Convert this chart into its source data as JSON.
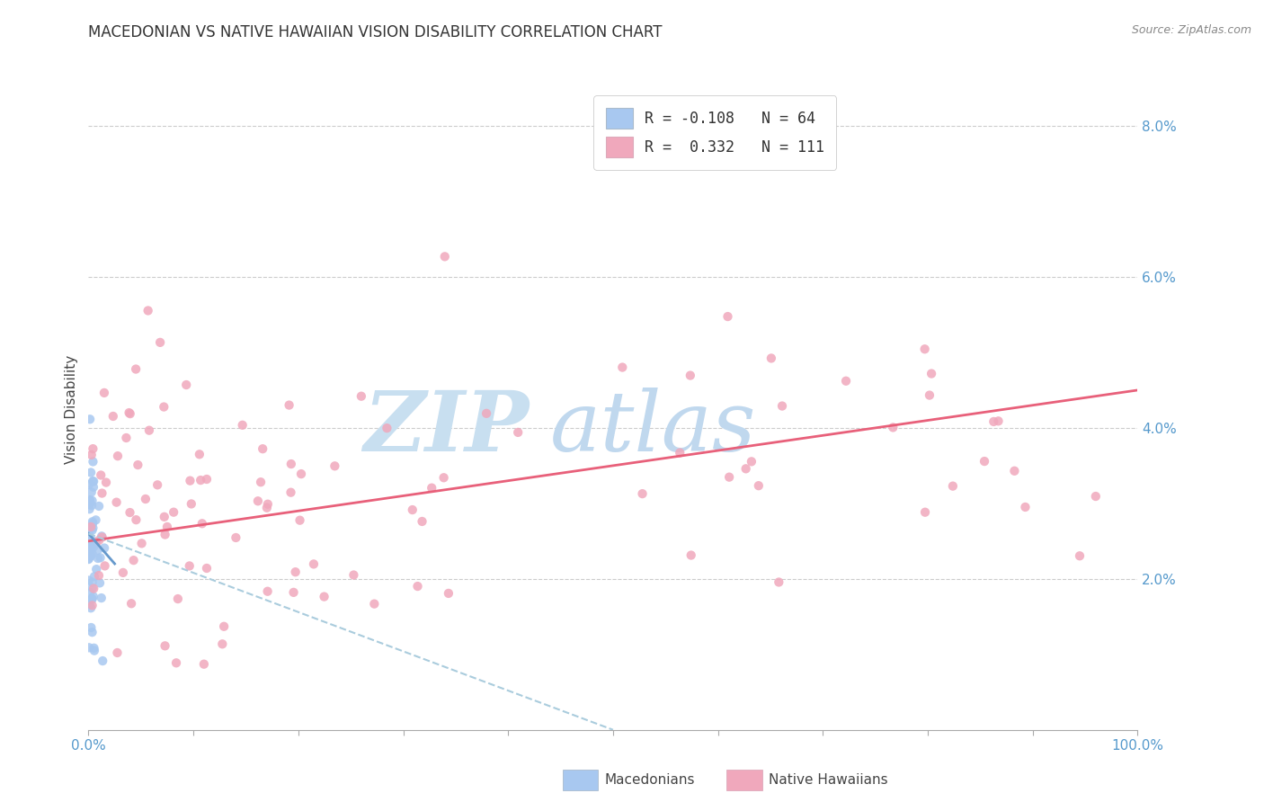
{
  "title": "MACEDONIAN VS NATIVE HAWAIIAN VISION DISABILITY CORRELATION CHART",
  "source": "Source: ZipAtlas.com",
  "ylabel_label": "Vision Disability",
  "macedonian_color": "#a8c8f0",
  "hawaiian_color": "#f0a8bc",
  "trendline_mac_solid_color": "#6699cc",
  "trendline_mac_dash_color": "#aaccdd",
  "trendline_haw_color": "#e8607a",
  "background_color": "#ffffff",
  "grid_color": "#cccccc",
  "tick_color": "#5599cc",
  "watermark_zip_color": "#c8dff0",
  "watermark_atlas_color": "#c0d8ee",
  "mac_R": -0.108,
  "mac_N": 64,
  "haw_R": 0.332,
  "haw_N": 111,
  "x_min": 0.0,
  "x_max": 1.0,
  "y_min": 0.0,
  "y_max": 0.085,
  "y_ticks": [
    0.02,
    0.04,
    0.06,
    0.08
  ],
  "y_tick_labels": [
    "2.0%",
    "4.0%",
    "6.0%",
    "8.0%"
  ],
  "x_tick_labels_ends": [
    "0.0%",
    "100.0%"
  ],
  "legend_label_mac": "Macedonians",
  "legend_label_haw": "Native Hawaiians",
  "haw_trendline_x0": 0.0,
  "haw_trendline_y0": 0.025,
  "haw_trendline_x1": 1.0,
  "haw_trendline_y1": 0.045,
  "mac_trendline_solid_x0": 0.0,
  "mac_trendline_solid_y0": 0.026,
  "mac_trendline_solid_x1": 0.025,
  "mac_trendline_solid_y1": 0.022,
  "mac_trendline_dash_x0": 0.0,
  "mac_trendline_dash_y0": 0.026,
  "mac_trendline_dash_x1": 0.5,
  "mac_trendline_dash_y1": 0.0
}
